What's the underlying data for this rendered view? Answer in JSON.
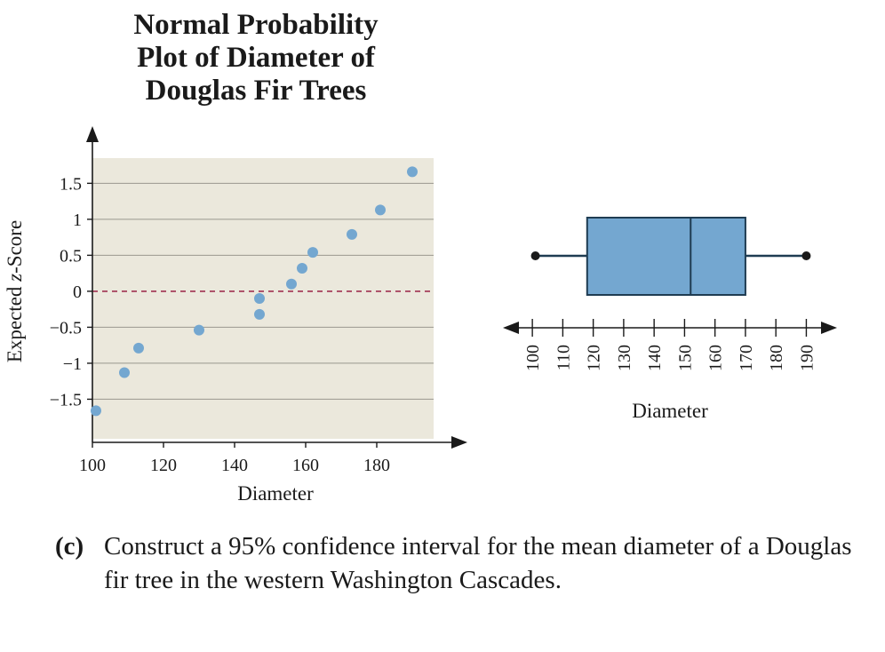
{
  "chart_data": [
    {
      "type": "scatter",
      "title": [
        "Normal Probability",
        "Plot of Diameter of",
        "Douglas Fir Trees"
      ],
      "xlabel": "Diameter",
      "ylabel_prefix": "Expected ",
      "ylabel_italic": "z",
      "ylabel_suffix": "-Score",
      "xlim": [
        100,
        196
      ],
      "ylim": [
        -2.05,
        1.85
      ],
      "xticks": [
        100,
        120,
        140,
        160,
        180
      ],
      "xtick_labels": [
        "100",
        "120",
        "140",
        "160",
        "180"
      ],
      "yticks": [
        1.5,
        1,
        0.5,
        0,
        -0.5,
        -1,
        -1.5
      ],
      "ytick_labels": [
        "1.5",
        "1",
        "0.5",
        "0",
        "−0.5",
        "−1",
        "−1.5"
      ],
      "reference_line_y": 0,
      "grid": true,
      "background_color": "#ebe8dc",
      "point_color": "#74a7d0",
      "reference_line_color": "#a03050",
      "points": [
        {
          "x": 101,
          "y": -1.66
        },
        {
          "x": 109,
          "y": -1.13
        },
        {
          "x": 113,
          "y": -0.79
        },
        {
          "x": 130,
          "y": -0.54
        },
        {
          "x": 147,
          "y": -0.32
        },
        {
          "x": 147,
          "y": -0.1
        },
        {
          "x": 156,
          "y": 0.1
        },
        {
          "x": 159,
          "y": 0.32
        },
        {
          "x": 162,
          "y": 0.54
        },
        {
          "x": 173,
          "y": 0.79
        },
        {
          "x": 181,
          "y": 1.13
        },
        {
          "x": 190,
          "y": 1.66
        }
      ]
    },
    {
      "type": "boxplot",
      "xlabel": "Diameter",
      "xlim": [
        95,
        196
      ],
      "xticks": [
        100,
        110,
        120,
        130,
        140,
        150,
        160,
        170,
        180,
        190
      ],
      "xtick_labels": [
        "100",
        "110",
        "120",
        "130",
        "140",
        "150",
        "160",
        "170",
        "180",
        "190"
      ],
      "min": 101,
      "q1": 118,
      "median": 152,
      "q3": 170,
      "max": 190,
      "box_color": "#74a7d0"
    }
  ],
  "question": {
    "label": "(c)",
    "text": "Construct a 95% confidence interval for the mean diameter of a Douglas fir tree in the western Washington Cascades."
  }
}
